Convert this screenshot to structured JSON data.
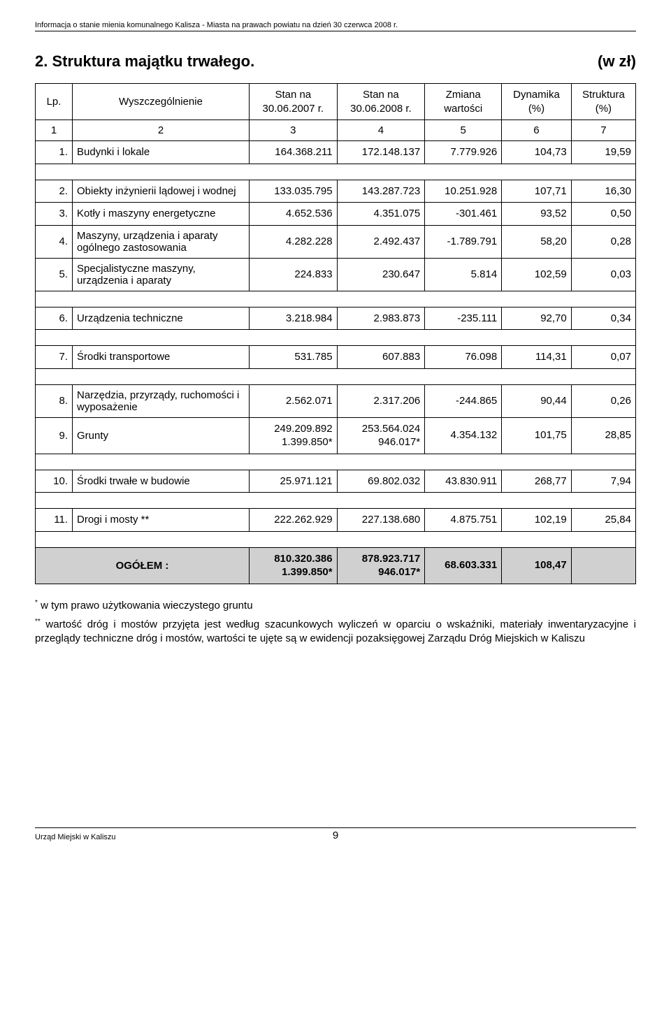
{
  "header_line": "Informacja o stanie mienia komunalnego Kalisza - Miasta na prawach powiatu na dzień 30 czerwca 2008 r.",
  "title": "2. Struktura majątku trwałego.",
  "unit_label": "(w zł)",
  "table": {
    "columns": {
      "lp": "Lp.",
      "name": "Wyszczególnienie",
      "c3": "Stan na\n30.06.2007 r.",
      "c4": "Stan na\n30.06.2008 r.",
      "c5": "Zmiana\nwartości",
      "c6": "Dynamika\n(%)",
      "c7": "Struktura\n(%)"
    },
    "numrow": {
      "c1": "1",
      "c2": "2",
      "c3": "3",
      "c4": "4",
      "c5": "5",
      "c6": "6",
      "c7": "7"
    },
    "rows": [
      {
        "lp": "1.",
        "name": "Budynki i lokale",
        "c3": "164.368.211",
        "c4": "172.148.137",
        "c5": "7.779.926",
        "c6": "104,73",
        "c7": "19,59"
      },
      {
        "lp": "2.",
        "name": "Obiekty inżynierii lądowej i wodnej",
        "c3": "133.035.795",
        "c4": "143.287.723",
        "c5": "10.251.928",
        "c6": "107,71",
        "c7": "16,30"
      },
      {
        "lp": "3.",
        "name": "Kotły i maszyny energetyczne",
        "c3": "4.652.536",
        "c4": "4.351.075",
        "c5": "-301.461",
        "c6": "93,52",
        "c7": "0,50"
      },
      {
        "lp": "4.",
        "name": "Maszyny, urządzenia i aparaty ogólnego zastosowania",
        "c3": "4.282.228",
        "c4": "2.492.437",
        "c5": "-1.789.791",
        "c6": "58,20",
        "c7": "0,28"
      },
      {
        "lp": "5.",
        "name": "Specjalistyczne maszyny, urządzenia i aparaty",
        "c3": "224.833",
        "c4": "230.647",
        "c5": "5.814",
        "c6": "102,59",
        "c7": "0,03"
      },
      {
        "lp": "6.",
        "name": "Urządzenia techniczne",
        "c3": "3.218.984",
        "c4": "2.983.873",
        "c5": "-235.111",
        "c6": "92,70",
        "c7": "0,34"
      },
      {
        "lp": "7.",
        "name": "Środki transportowe",
        "c3": "531.785",
        "c4": "607.883",
        "c5": "76.098",
        "c6": "114,31",
        "c7": "0,07"
      },
      {
        "lp": "8.",
        "name": "Narzędzia, przyrządy, ruchomości i wyposażenie",
        "c3": "2.562.071",
        "c4": "2.317.206",
        "c5": "-244.865",
        "c6": "90,44",
        "c7": "0,26"
      },
      {
        "lp": "9.",
        "name": "Grunty",
        "c3": "249.209.892\n1.399.850*",
        "c4": "253.564.024\n946.017*",
        "c5": "4.354.132",
        "c6": "101,75",
        "c7": "28,85"
      },
      {
        "lp": "10.",
        "name": "Środki trwałe w budowie",
        "c3": "25.971.121",
        "c4": "69.802.032",
        "c5": "43.830.911",
        "c6": "268,77",
        "c7": "7,94"
      },
      {
        "lp": "11.",
        "name": "Drogi i mosty **",
        "c3": "222.262.929",
        "c4": "227.138.680",
        "c5": "4.875.751",
        "c6": "102,19",
        "c7": "25,84"
      }
    ],
    "total": {
      "label": "OGÓŁEM :",
      "c3": "810.320.386\n1.399.850*",
      "c4": "878.923.717\n946.017*",
      "c5": "68.603.331",
      "c6": "108,47",
      "c7": ""
    },
    "spacer_after": [
      0,
      4,
      5,
      6,
      8,
      9,
      10
    ]
  },
  "notes": {
    "n1_marker": "*",
    "n1_text": " w tym prawo użytkowania wieczystego gruntu",
    "n2_marker": "**",
    "n2_text": " wartość dróg i mostów przyjęta jest według szacunkowych wyliczeń w oparciu o wskaźniki, materiały inwentaryzacyjne i przeglądy techniczne dróg i mostów, wartości te ujęte są w ewidencji pozaksięgowej Zarządu Dróg Miejskich w Kaliszu"
  },
  "footer": {
    "left": "Urząd Miejski w Kaliszu",
    "page": "9"
  }
}
